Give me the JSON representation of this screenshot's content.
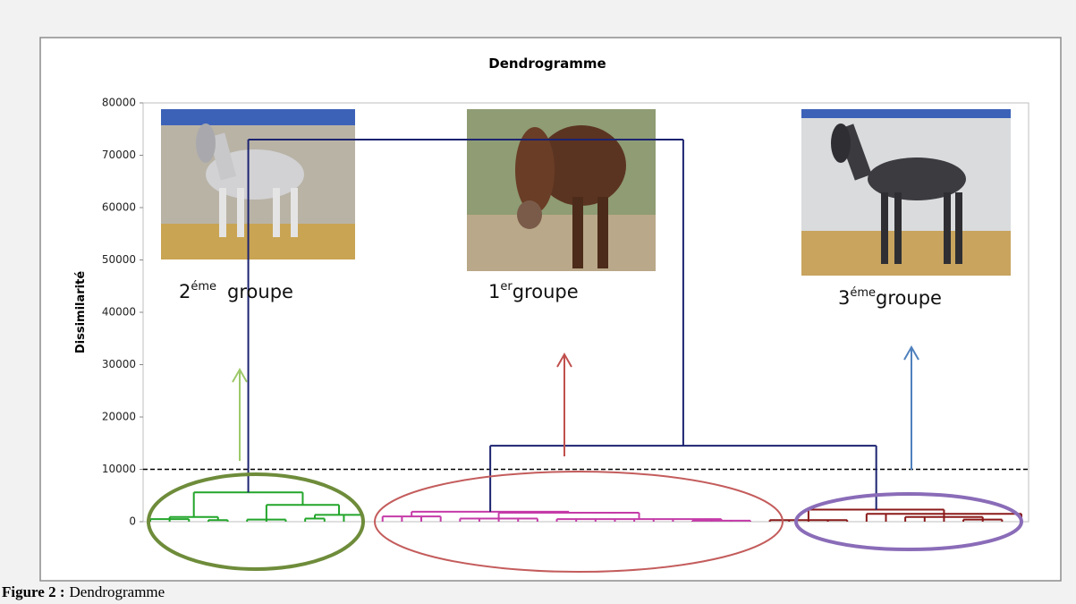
{
  "chart_data": {
    "type": "dendrogram",
    "title": "Dendrogramme",
    "y_label": "Dissimilarité",
    "ylim": [
      0,
      80000
    ],
    "yticks": [
      0,
      10000,
      20000,
      30000,
      40000,
      50000,
      60000,
      70000,
      80000
    ],
    "threshold": 10000,
    "tree": {
      "height": 73000,
      "color": "#1c2370",
      "children": [
        {
          "height": 5600,
          "color": "#22a52a",
          "children": [
            {
              "height": 900,
              "color": "#22a52a",
              "children": [
                {
                  "height": 500,
                  "color": "#22a52a",
                  "children": [
                    0,
                    0,
                    0
                  ]
                },
                {
                  "height": 300,
                  "color": "#22a52a",
                  "children": [
                    0,
                    0
                  ]
                }
              ]
            },
            {
              "height": 3200,
              "color": "#22a52a",
              "children": [
                {
                  "height": 400,
                  "color": "#22a52a",
                  "children": [
                    0,
                    0,
                    0
                  ]
                },
                {
                  "height": 1300,
                  "color": "#22a52a",
                  "children": [
                    {
                      "height": 600,
                      "color": "#22a52a",
                      "children": [
                        0,
                        0
                      ]
                    },
                    0,
                    0
                  ]
                }
              ]
            }
          ]
        },
        {
          "height": 14500,
          "color": "#1c2370",
          "children": [
            {
              "height": 1900,
              "color": "#c43ba8",
              "children": [
                {
                  "height": 1000,
                  "color": "#c43ba8",
                  "children": [
                    0,
                    0,
                    0,
                    0
                  ]
                },
                {
                  "height": 1700,
                  "color": "#c43ba8",
                  "children": [
                    {
                      "height": 600,
                      "color": "#c43ba8",
                      "children": [
                        0,
                        0,
                        0,
                        0,
                        0
                      ]
                    },
                    {
                      "height": 500,
                      "color": "#c43ba8",
                      "children": [
                        0,
                        0,
                        0,
                        0,
                        0,
                        0,
                        0,
                        {
                          "height": 200,
                          "color": "#c43ba8",
                          "children": [
                            0,
                            0,
                            0,
                            0
                          ]
                        }
                      ]
                    }
                  ]
                }
              ]
            },
            {
              "height": 2300,
              "color": "#8b1a1a",
              "children": [
                {
                  "height": 300,
                  "color": "#8b1a1a",
                  "children": [
                    0,
                    0,
                    0,
                    0,
                    0
                  ]
                },
                {
                  "height": 1500,
                  "color": "#8b1a1a",
                  "children": [
                    0,
                    0,
                    {
                      "height": 900,
                      "color": "#8b1a1a",
                      "children": [
                        0,
                        0,
                        0,
                        {
                          "height": 400,
                          "color": "#8b1a1a",
                          "children": [
                            0,
                            0,
                            0
                          ]
                        }
                      ]
                    },
                    0
                  ]
                }
              ]
            }
          ]
        }
      ]
    },
    "groups": [
      {
        "number": "2",
        "sup": "éme",
        "text": "groupe"
      },
      {
        "number": "1",
        "sup": "er",
        "text": "groupe"
      },
      {
        "number": "3",
        "sup": "éme",
        "text": "groupe"
      }
    ]
  },
  "caption": {
    "label": "Figure 2 :",
    "text": "Dendrogramme"
  }
}
